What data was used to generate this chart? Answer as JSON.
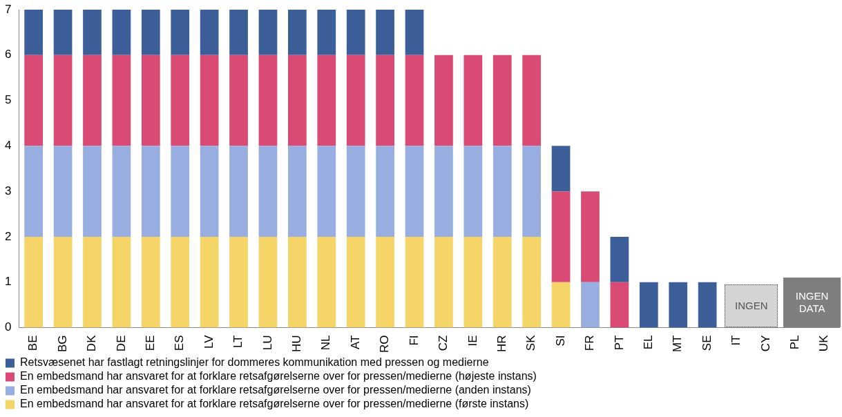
{
  "chart_data": {
    "type": "bar",
    "stacked": true,
    "categories": [
      "BE",
      "BG",
      "DK",
      "DE",
      "EE",
      "ES",
      "LV",
      "LT",
      "LU",
      "HU",
      "NL",
      "AT",
      "RO",
      "FI",
      "CZ",
      "IE",
      "HR",
      "SK",
      "SI",
      "FR",
      "PT",
      "EL",
      "MT",
      "SE",
      "IT",
      "CY",
      "PL",
      "UK"
    ],
    "series": [
      {
        "name": "En embedsmand har ansvaret for at forklare retsafgørelserne over for pressen/medierne (første instans)",
        "color": "#f5d468",
        "values": [
          2,
          2,
          2,
          2,
          2,
          2,
          2,
          2,
          2,
          2,
          2,
          2,
          2,
          2,
          2,
          2,
          2,
          2,
          1,
          0,
          0,
          0,
          0,
          0,
          0,
          0,
          0,
          0
        ]
      },
      {
        "name": "En embedsmand har ansvaret for at forklare retsafgørelserne over for pressen/medierne (anden instans)",
        "color": "#98aee0",
        "values": [
          2,
          2,
          2,
          2,
          2,
          2,
          2,
          2,
          2,
          2,
          2,
          2,
          2,
          2,
          2,
          2,
          2,
          2,
          0,
          1,
          0,
          0,
          0,
          0,
          0,
          0,
          0,
          0
        ]
      },
      {
        "name": "En embedsmand har ansvaret for at forklare retsafgørelserne over for pressen/medierne (højeste instans)",
        "color": "#d94a74",
        "values": [
          2,
          2,
          2,
          2,
          2,
          2,
          2,
          2,
          2,
          2,
          2,
          2,
          2,
          2,
          2,
          2,
          2,
          2,
          2,
          2,
          1,
          0,
          0,
          0,
          0,
          0,
          0,
          0
        ]
      },
      {
        "name": "Retsvæsenet har fastlagt retningslinjer for dommeres kommunikation med pressen og medierne",
        "color": "#3c5f9a",
        "values": [
          1,
          1,
          1,
          1,
          1,
          1,
          1,
          1,
          1,
          1,
          1,
          1,
          1,
          1,
          0,
          0,
          0,
          0,
          1,
          0,
          1,
          1,
          1,
          1,
          0,
          0,
          0,
          0
        ]
      }
    ],
    "ylim": [
      0,
      7
    ],
    "yticks": [
      0,
      1,
      2,
      3,
      4,
      5,
      6,
      7
    ],
    "grid": false,
    "legend": "bottom",
    "annotations": [
      "INGEN",
      "INGEN DATA"
    ]
  }
}
